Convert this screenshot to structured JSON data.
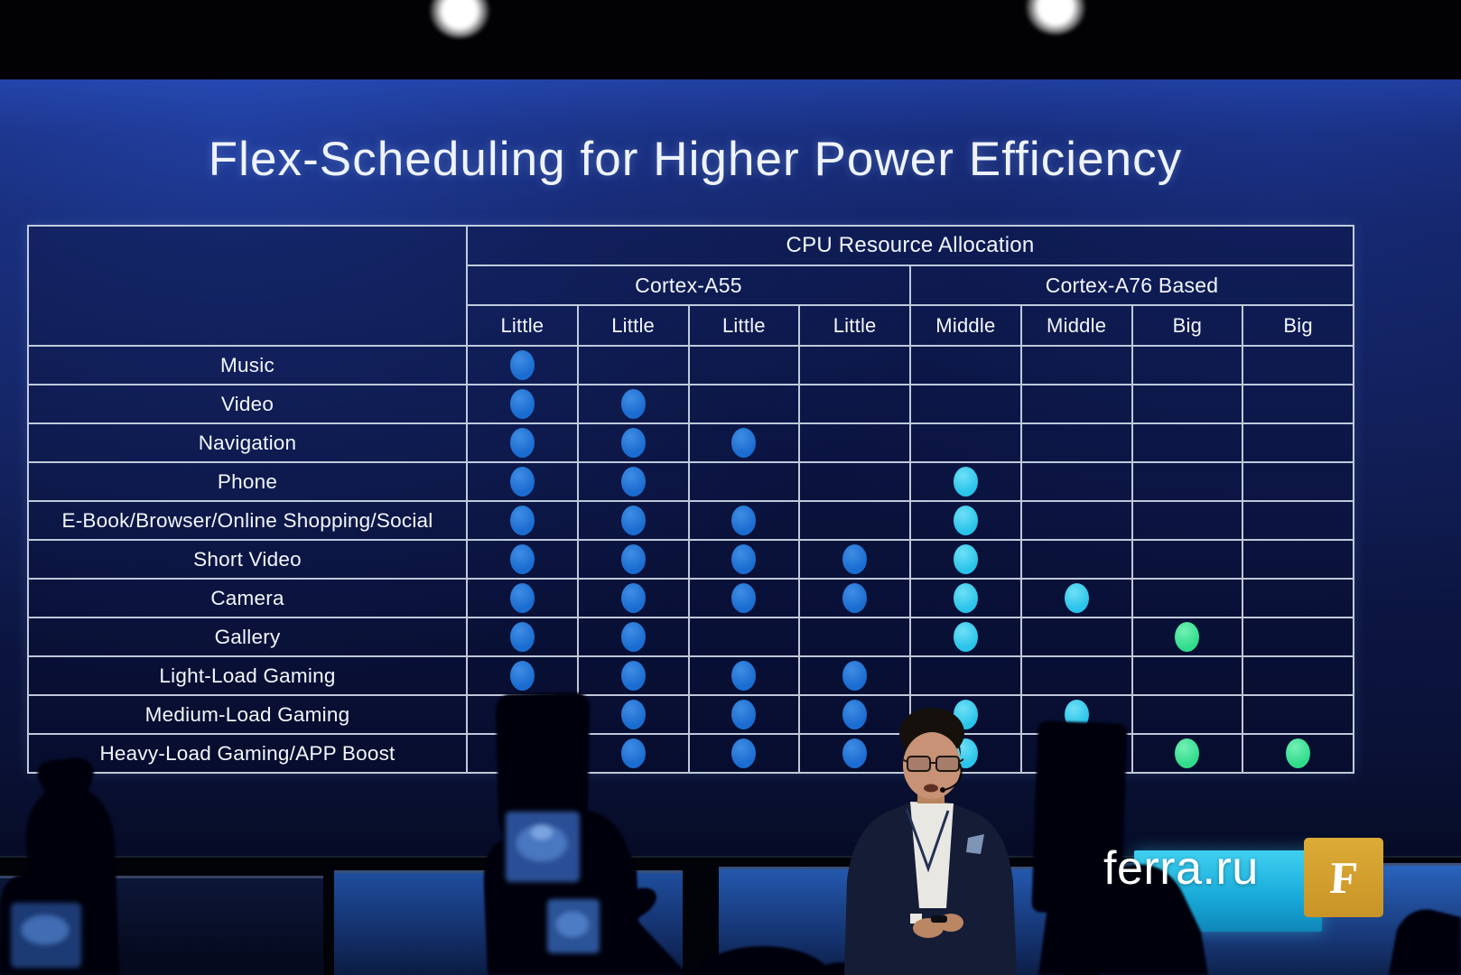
{
  "slide": {
    "title": "Flex-Scheduling for Higher Power Efficiency"
  },
  "chart_data": {
    "type": "table",
    "title": "Flex-Scheduling for Higher Power Efficiency",
    "header": "CPU Resource Allocation",
    "column_groups": [
      {
        "label": "Cortex-A55",
        "span": 4
      },
      {
        "label": "Cortex-A76 Based",
        "span": 4
      }
    ],
    "columns": [
      "Little",
      "Little",
      "Little",
      "Little",
      "Middle",
      "Middle",
      "Big",
      "Big"
    ],
    "column_types": [
      "little",
      "little",
      "little",
      "little",
      "middle",
      "middle",
      "big",
      "big"
    ],
    "rows": [
      {
        "label": "Music",
        "cores": [
          1,
          0,
          0,
          0,
          0,
          0,
          0,
          0
        ]
      },
      {
        "label": "Video",
        "cores": [
          1,
          1,
          0,
          0,
          0,
          0,
          0,
          0
        ]
      },
      {
        "label": "Navigation",
        "cores": [
          1,
          1,
          1,
          0,
          0,
          0,
          0,
          0
        ]
      },
      {
        "label": "Phone",
        "cores": [
          1,
          1,
          0,
          0,
          1,
          0,
          0,
          0
        ]
      },
      {
        "label": "E-Book/Browser/Online Shopping/Social",
        "cores": [
          1,
          1,
          1,
          0,
          1,
          0,
          0,
          0
        ]
      },
      {
        "label": "Short Video",
        "cores": [
          1,
          1,
          1,
          1,
          1,
          0,
          0,
          0
        ]
      },
      {
        "label": "Camera",
        "cores": [
          1,
          1,
          1,
          1,
          1,
          1,
          0,
          0
        ]
      },
      {
        "label": "Gallery",
        "cores": [
          1,
          1,
          0,
          0,
          1,
          0,
          1,
          0
        ]
      },
      {
        "label": "Light-Load Gaming",
        "cores": [
          1,
          1,
          1,
          1,
          0,
          0,
          0,
          0
        ]
      },
      {
        "label": "Medium-Load Gaming",
        "cores": [
          1,
          1,
          1,
          1,
          1,
          1,
          0,
          0
        ]
      },
      {
        "label": "Heavy-Load Gaming/APP Boost",
        "cores": [
          1,
          1,
          1,
          1,
          1,
          1,
          1,
          1
        ]
      }
    ],
    "dot_colors": {
      "little": "#1a6cd0",
      "middle": "#2ac4ea",
      "big": "#30dc8c"
    },
    "grid_color": "#d7e3f0",
    "layout": {
      "grid": "on",
      "legend": "none"
    }
  },
  "watermark": {
    "site": "ferra.ru",
    "logo_letter": "F",
    "logo_color": "#d4a12e"
  }
}
